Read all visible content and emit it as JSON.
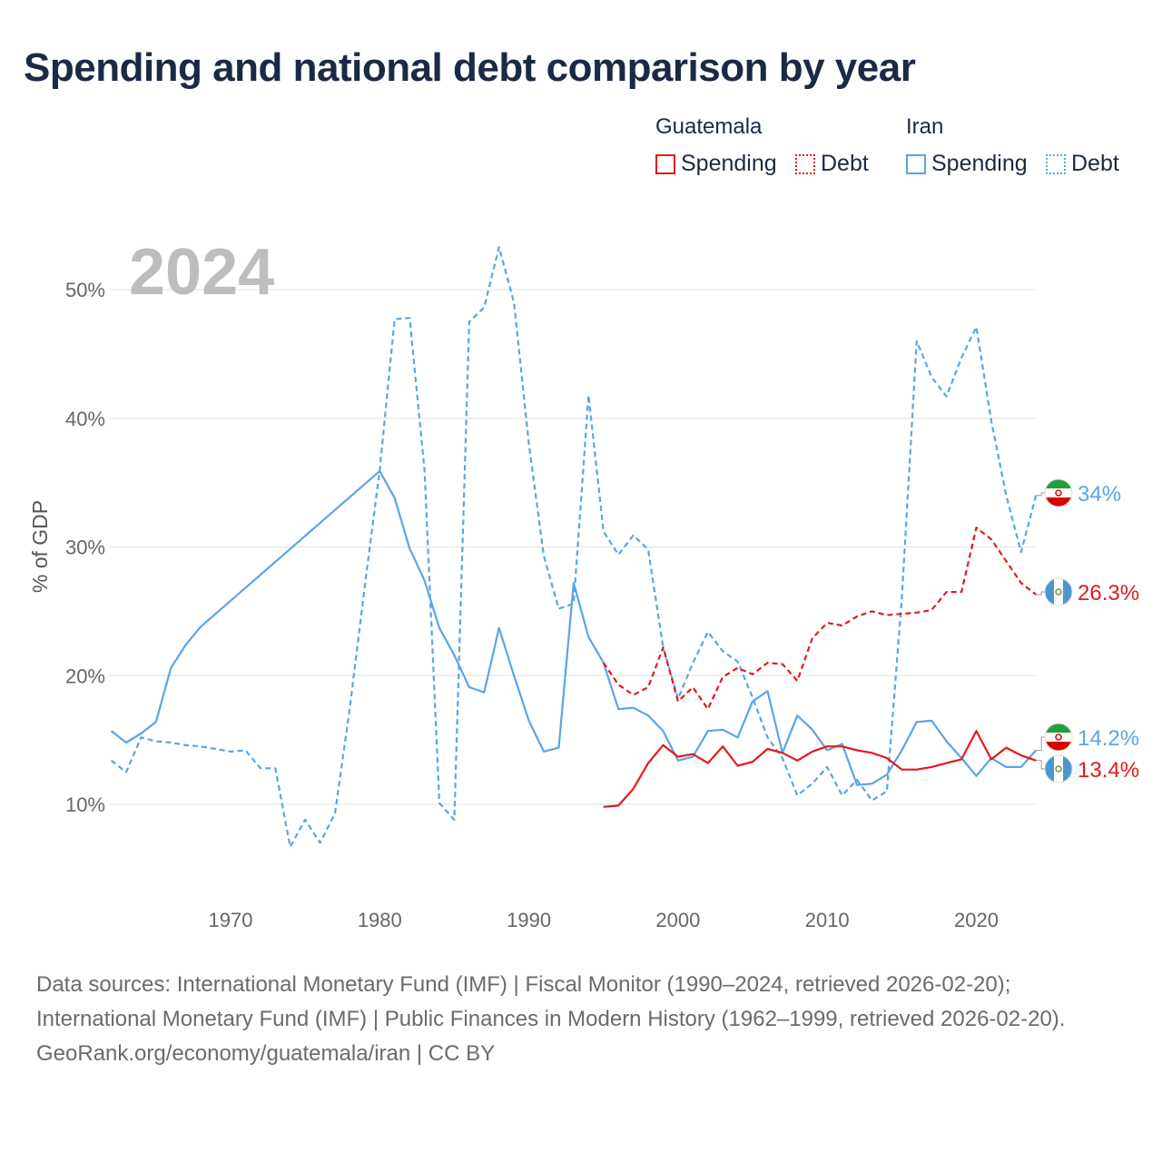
{
  "title": "Spending and national debt comparison by year",
  "legend": {
    "groups": [
      {
        "country": "Guatemala",
        "color": "#e31a1c",
        "items": [
          {
            "label": "Spending",
            "style": "solid"
          },
          {
            "label": "Debt",
            "style": "dotted"
          }
        ]
      },
      {
        "country": "Iran",
        "color": "#5aa5e6",
        "items": [
          {
            "label": "Spending",
            "style": "solid"
          },
          {
            "label": "Debt",
            "style": "dotted"
          }
        ]
      }
    ]
  },
  "chart_data": {
    "type": "line",
    "title": "Spending and national debt comparison by year",
    "year_label": "2024",
    "xlabel": "",
    "ylabel": "% of GDP",
    "xlim": [
      1962,
      2024
    ],
    "ylim": [
      4,
      55
    ],
    "x_ticks": [
      1970,
      1980,
      1990,
      2000,
      2010,
      2020
    ],
    "y_ticks": [
      10,
      20,
      30,
      40,
      50
    ],
    "y_tick_labels": [
      "10%",
      "20%",
      "30%",
      "40%",
      "50%"
    ],
    "grid": true,
    "series": [
      {
        "name": "Iran Debt",
        "country": "Iran",
        "metric": "Debt",
        "color": "#5aa5e6",
        "dash": "dashed",
        "x": [
          1962,
          1963,
          1964,
          1965,
          1966,
          1967,
          1968,
          1969,
          1970,
          1971,
          1972,
          1973,
          1974,
          1975,
          1976,
          1977,
          1978,
          1979,
          1980,
          1981,
          1982,
          1983,
          1984,
          1985,
          1986,
          1987,
          1988,
          1989,
          1990,
          1991,
          1992,
          1993,
          1994,
          1995,
          1996,
          1997,
          1998,
          1999,
          2000,
          2001,
          2002,
          2003,
          2004,
          2005,
          2006,
          2007,
          2008,
          2009,
          2010,
          2011,
          2012,
          2013,
          2014,
          2015,
          2016,
          2017,
          2018,
          2019,
          2020,
          2021,
          2022,
          2023,
          2024
        ],
        "values": [
          13.4,
          12.5,
          15.2,
          14.9,
          14.8,
          14.6,
          14.5,
          14.3,
          14.1,
          14.2,
          12.8,
          12.8,
          6.7,
          8.8,
          7.0,
          9.3,
          17.5,
          27.0,
          36.0,
          47.7,
          47.8,
          36.0,
          10.1,
          8.8,
          47.5,
          48.6,
          53.3,
          49.0,
          38.0,
          29.3,
          25.2,
          25.6,
          41.8,
          31.2,
          29.4,
          30.9,
          29.8,
          22.2,
          18.2,
          21.0,
          23.4,
          21.9,
          21.1,
          18.3,
          15.2,
          13.6,
          10.7,
          11.6,
          12.9,
          10.7,
          11.9,
          10.3,
          11.0,
          26.0,
          46.0,
          43.2,
          41.7,
          44.7,
          47.1,
          39.8,
          34.0,
          29.6,
          34.0
        ],
        "end_label": "34%"
      },
      {
        "name": "Iran Spending",
        "country": "Iran",
        "metric": "Spending",
        "color": "#5aa5e6",
        "dash": "solid",
        "x": [
          1962,
          1963,
          1964,
          1965,
          1966,
          1967,
          1968,
          1980,
          1981,
          1982,
          1983,
          1984,
          1985,
          1986,
          1987,
          1988,
          1989,
          1990,
          1991,
          1992,
          1993,
          1994,
          1995,
          1996,
          1997,
          1998,
          1999,
          2000,
          2001,
          2002,
          2003,
          2004,
          2005,
          2006,
          2007,
          2008,
          2009,
          2010,
          2011,
          2012,
          2013,
          2014,
          2015,
          2016,
          2017,
          2018,
          2019,
          2020,
          2021,
          2022,
          2023,
          2024
        ],
        "values": [
          15.7,
          14.8,
          15.5,
          16.4,
          20.6,
          22.4,
          23.8,
          35.9,
          33.8,
          29.9,
          27.4,
          23.7,
          21.6,
          19.1,
          18.7,
          23.7,
          20.0,
          16.5,
          14.1,
          14.4,
          27.2,
          23.0,
          21.0,
          17.4,
          17.5,
          16.9,
          15.7,
          13.4,
          13.7,
          15.7,
          15.8,
          15.2,
          18.0,
          18.8,
          14.0,
          16.9,
          15.8,
          14.2,
          14.7,
          11.5,
          11.6,
          12.3,
          14.2,
          16.4,
          16.5,
          14.9,
          13.6,
          12.2,
          13.6,
          12.9,
          12.9,
          14.2
        ],
        "end_label": "14.2%"
      },
      {
        "name": "Guatemala Debt",
        "country": "Guatemala",
        "metric": "Debt",
        "color": "#e31a1c",
        "dash": "dashed",
        "x": [
          1995,
          1996,
          1997,
          1998,
          1999,
          2000,
          2001,
          2002,
          2003,
          2004,
          2005,
          2006,
          2007,
          2008,
          2009,
          2010,
          2011,
          2012,
          2013,
          2014,
          2015,
          2016,
          2017,
          2018,
          2019,
          2020,
          2021,
          2022,
          2023,
          2024
        ],
        "values": [
          21.0,
          19.3,
          18.5,
          19.1,
          22.2,
          18.0,
          19.1,
          17.4,
          19.9,
          20.6,
          20.1,
          21.0,
          20.9,
          19.6,
          22.9,
          24.1,
          23.9,
          24.6,
          25.0,
          24.7,
          24.8,
          24.9,
          25.1,
          26.5,
          26.5,
          31.5,
          30.6,
          28.9,
          27.2,
          26.3
        ],
        "end_label": "26.3%"
      },
      {
        "name": "Guatemala Spending",
        "country": "Guatemala",
        "metric": "Spending",
        "color": "#e31a1c",
        "dash": "solid",
        "x": [
          1995,
          1996,
          1997,
          1998,
          1999,
          2000,
          2001,
          2002,
          2003,
          2004,
          2005,
          2006,
          2007,
          2008,
          2009,
          2010,
          2011,
          2012,
          2013,
          2014,
          2015,
          2016,
          2017,
          2018,
          2019,
          2020,
          2021,
          2022,
          2023,
          2024
        ],
        "values": [
          9.8,
          9.9,
          11.2,
          13.2,
          14.6,
          13.7,
          13.9,
          13.2,
          14.5,
          13.0,
          13.3,
          14.3,
          14.0,
          13.4,
          14.1,
          14.5,
          14.5,
          14.2,
          14.0,
          13.6,
          12.7,
          12.7,
          12.9,
          13.2,
          13.5,
          15.7,
          13.5,
          14.4,
          13.8,
          13.4
        ],
        "end_label": "13.4%"
      }
    ]
  },
  "footer": {
    "sources": "Data sources: International Monetary Fund (IMF) | Fiscal Monitor (1990–2024, retrieved 2026-02-20); International Monetary Fund (IMF) | Public Finances in Modern History (1962–1999, retrieved 2026-02-20).",
    "credit": "GeoRank.org/economy/guatemala/iran | CC BY"
  }
}
